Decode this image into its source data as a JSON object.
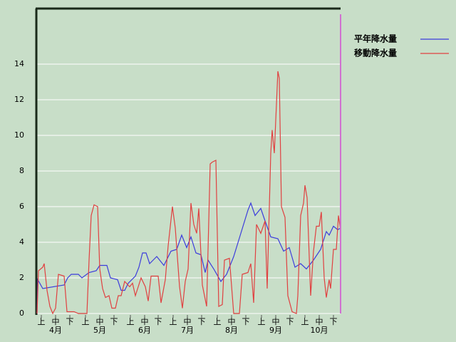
{
  "chart_data": {
    "type": "line",
    "series": [
      {
        "name": "平年降水量",
        "color": "#3c3cdc",
        "x": [
          0,
          0.5,
          4,
          19,
          21.5,
          24,
          29,
          31.5,
          36.5,
          41.5,
          44,
          49,
          51.5,
          56.5,
          59,
          61.5,
          64,
          69,
          71.5,
          74,
          76.5,
          79,
          81.5,
          84,
          89,
          94,
          98,
          101.5,
          105,
          108,
          111.5,
          115,
          118,
          120,
          124,
          129,
          133,
          138,
          143,
          148,
          150,
          153,
          157,
          160,
          164,
          169,
          173,
          177,
          181,
          185,
          189,
          194,
          199,
          203,
          205,
          208,
          211,
          213
        ],
        "values": [
          0,
          1.9,
          1.4,
          1.6,
          2.0,
          2.2,
          2.2,
          2.0,
          2.3,
          2.4,
          2.7,
          2.7,
          2.0,
          1.9,
          1.3,
          1.3,
          1.7,
          2.1,
          2.6,
          3.4,
          3.4,
          2.8,
          3.0,
          3.2,
          2.7,
          3.5,
          3.6,
          4.4,
          3.7,
          4.3,
          3.4,
          3.3,
          2.3,
          3.0,
          2.5,
          1.8,
          2.2,
          3.2,
          4.5,
          5.8,
          6.2,
          5.5,
          5.9,
          5.2,
          4.3,
          4.2,
          3.5,
          3.7,
          2.6,
          2.8,
          2.5,
          3.0,
          3.6,
          4.6,
          4.4,
          4.9,
          4.7,
          4.8
        ]
      },
      {
        "name": "移動降水量",
        "color": "#e04040",
        "x": [
          0,
          1,
          4,
          5,
          7,
          9,
          11,
          13,
          15,
          19,
          21,
          26,
          29,
          35,
          36.5,
          38,
          40,
          42.5,
          44,
          46,
          48,
          50.5,
          52.5,
          55,
          57,
          59,
          61.5,
          65,
          67,
          69,
          71,
          73,
          76,
          78,
          80,
          85,
          87,
          90,
          92,
          95,
          97,
          100,
          102,
          104,
          106,
          108,
          110,
          112,
          113.5,
          116,
          119,
          121.5,
          123,
          125.5,
          127.5,
          130,
          131.5,
          135,
          138,
          142,
          144,
          148,
          150,
          152,
          154,
          157,
          160,
          161.5,
          164,
          165,
          166.5,
          169,
          170,
          171.5,
          174,
          176,
          179,
          182,
          183,
          185,
          187,
          188,
          189.5,
          192,
          194,
          196,
          198,
          199.5,
          201.5,
          203,
          205,
          206,
          208,
          210,
          211.5,
          213
        ],
        "values": [
          0,
          2.4,
          2.6,
          2.8,
          1.3,
          0.4,
          0,
          0.3,
          2.2,
          2.1,
          0.1,
          0.1,
          0,
          0,
          3.0,
          5.5,
          6.1,
          6.0,
          2.5,
          1.4,
          0.9,
          1.0,
          0.3,
          0.3,
          1.0,
          1.0,
          1.8,
          1.5,
          1.7,
          1.0,
          1.5,
          2.0,
          1.5,
          0.7,
          2.1,
          2.1,
          0.6,
          1.9,
          3.8,
          6.0,
          4.8,
          1.5,
          0.3,
          1.8,
          2.5,
          6.2,
          5.0,
          4.5,
          5.9,
          1.6,
          0.4,
          8.4,
          8.5,
          8.6,
          0.4,
          0.5,
          3.0,
          3.1,
          0,
          0,
          2.2,
          2.3,
          2.8,
          0.6,
          5.0,
          4.5,
          5.2,
          1.4,
          9.0,
          10.3,
          9.0,
          13.6,
          13.2,
          6.0,
          5.4,
          1.0,
          0.1,
          0,
          1.0,
          5.5,
          6.2,
          7.2,
          6.5,
          1.0,
          3.5,
          4.9,
          4.9,
          5.7,
          2.0,
          0.9,
          1.9,
          1.4,
          3.6,
          3.6,
          5.5,
          4.7
        ]
      }
    ],
    "xlim": [
      0,
      213
    ],
    "xticks": [
      {
        "value": 3,
        "label": "上"
      },
      {
        "value": 13,
        "label": "中"
      },
      {
        "value": 23,
        "label": "下"
      },
      {
        "value": 34,
        "label": "上"
      },
      {
        "value": 44,
        "label": "中"
      },
      {
        "value": 54,
        "label": "下"
      },
      {
        "value": 65.5,
        "label": "上"
      },
      {
        "value": 75.5,
        "label": "中"
      },
      {
        "value": 85,
        "label": "下"
      },
      {
        "value": 95.5,
        "label": "上"
      },
      {
        "value": 105.5,
        "label": "中"
      },
      {
        "value": 115.5,
        "label": "下"
      },
      {
        "value": 126.5,
        "label": "上"
      },
      {
        "value": 136.5,
        "label": "中"
      },
      {
        "value": 146.5,
        "label": "下"
      },
      {
        "value": 157.5,
        "label": "上"
      },
      {
        "value": 167.5,
        "label": "中"
      },
      {
        "value": 177.5,
        "label": "下"
      },
      {
        "value": 188,
        "label": "上"
      },
      {
        "value": 198,
        "label": "中"
      },
      {
        "value": 208,
        "label": "下"
      }
    ],
    "month_labels": [
      {
        "value": 13,
        "label": "4月"
      },
      {
        "value": 44,
        "label": "5月"
      },
      {
        "value": 75.5,
        "label": "6月"
      },
      {
        "value": 105.5,
        "label": "7月"
      },
      {
        "value": 136.5,
        "label": "8月"
      },
      {
        "value": 167.5,
        "label": "9月"
      },
      {
        "value": 198,
        "label": "10月"
      }
    ],
    "ylim": [
      0,
      17.12
    ],
    "yticks": [
      0,
      2,
      4,
      6,
      8,
      10,
      12,
      14
    ],
    "grid": true,
    "marker_line": {
      "x": 213,
      "color": "#d070d0"
    }
  }
}
